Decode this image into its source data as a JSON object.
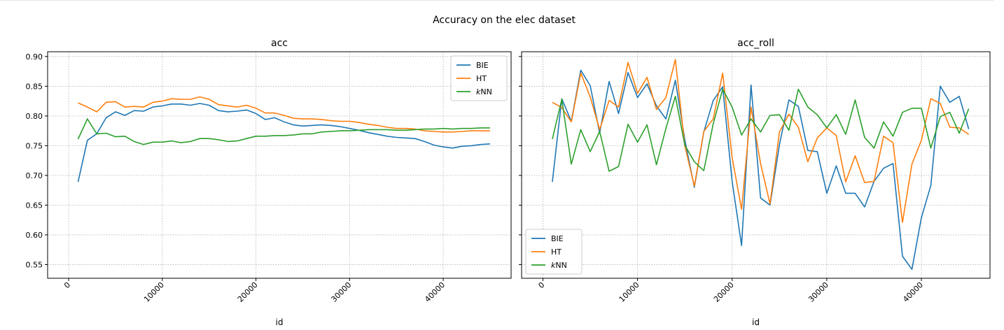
{
  "figure": {
    "suptitle": "Accuracy on the elec dataset"
  },
  "colors": {
    "BIE": "#1f77b4",
    "HT": "#ff7f0e",
    "kNN": "#2ca02c",
    "grid": "#b0b0b0"
  },
  "chart_data": [
    {
      "type": "line",
      "title": "acc",
      "xlabel": "id",
      "ylabel": "",
      "xlim": [
        -2250,
        47250
      ],
      "ylim": [
        0.527,
        0.908
      ],
      "xticks": [
        0,
        10000,
        20000,
        30000,
        40000
      ],
      "yticks": [
        "0.55",
        "0.60",
        "0.65",
        "0.70",
        "0.75",
        "0.80",
        "0.85",
        "0.90"
      ],
      "grid": true,
      "legend": "top-right",
      "x": [
        1000,
        2000,
        3000,
        4000,
        5000,
        6000,
        7000,
        8000,
        9000,
        10000,
        11000,
        12000,
        13000,
        14000,
        15000,
        16000,
        17000,
        18000,
        19000,
        20000,
        21000,
        22000,
        23000,
        24000,
        25000,
        26000,
        27000,
        28000,
        29000,
        30000,
        31000,
        32000,
        33000,
        34000,
        35000,
        36000,
        37000,
        38000,
        39000,
        40000,
        41000,
        42000,
        43000,
        44000,
        45000
      ],
      "series": [
        {
          "name": "BIE",
          "values": [
            0.689,
            0.759,
            0.77,
            0.797,
            0.807,
            0.801,
            0.809,
            0.808,
            0.815,
            0.817,
            0.82,
            0.82,
            0.818,
            0.821,
            0.818,
            0.809,
            0.807,
            0.808,
            0.81,
            0.804,
            0.794,
            0.797,
            0.79,
            0.785,
            0.783,
            0.784,
            0.785,
            0.784,
            0.782,
            0.779,
            0.776,
            0.772,
            0.769,
            0.766,
            0.764,
            0.763,
            0.762,
            0.757,
            0.751,
            0.748,
            0.746,
            0.749,
            0.75,
            0.752,
            0.753
          ]
        },
        {
          "name": "HT",
          "values": [
            0.822,
            0.815,
            0.807,
            0.823,
            0.824,
            0.815,
            0.816,
            0.815,
            0.823,
            0.825,
            0.829,
            0.828,
            0.828,
            0.832,
            0.828,
            0.819,
            0.817,
            0.815,
            0.818,
            0.813,
            0.805,
            0.805,
            0.801,
            0.796,
            0.795,
            0.795,
            0.794,
            0.792,
            0.791,
            0.791,
            0.789,
            0.786,
            0.784,
            0.781,
            0.779,
            0.779,
            0.778,
            0.775,
            0.774,
            0.773,
            0.773,
            0.774,
            0.775,
            0.775,
            0.775
          ]
        },
        {
          "name": "kNN",
          "values": [
            0.761,
            0.795,
            0.77,
            0.771,
            0.765,
            0.766,
            0.757,
            0.752,
            0.756,
            0.756,
            0.758,
            0.755,
            0.757,
            0.762,
            0.762,
            0.76,
            0.757,
            0.758,
            0.762,
            0.766,
            0.766,
            0.767,
            0.767,
            0.768,
            0.77,
            0.77,
            0.773,
            0.774,
            0.775,
            0.775,
            0.776,
            0.777,
            0.777,
            0.777,
            0.776,
            0.776,
            0.777,
            0.778,
            0.778,
            0.779,
            0.778,
            0.779,
            0.779,
            0.78,
            0.78
          ]
        }
      ]
    },
    {
      "type": "line",
      "title": "acc_roll",
      "xlabel": "id",
      "ylabel": "",
      "xlim": [
        -2250,
        47250
      ],
      "ylim": [
        0.527,
        0.908
      ],
      "xticks": [
        0,
        10000,
        20000,
        30000,
        40000
      ],
      "yticks": [],
      "grid": true,
      "legend": "bottom-left",
      "x": [
        1000,
        2000,
        3000,
        4000,
        5000,
        6000,
        7000,
        8000,
        9000,
        10000,
        11000,
        12000,
        13000,
        14000,
        15000,
        16000,
        17000,
        18000,
        19000,
        20000,
        21000,
        22000,
        23000,
        24000,
        25000,
        26000,
        27000,
        28000,
        29000,
        30000,
        31000,
        32000,
        33000,
        34000,
        35000,
        36000,
        37000,
        38000,
        39000,
        40000,
        41000,
        42000,
        43000,
        44000,
        45000
      ],
      "series": [
        {
          "name": "BIE",
          "values": [
            0.689,
            0.829,
            0.791,
            0.877,
            0.851,
            0.771,
            0.858,
            0.804,
            0.873,
            0.831,
            0.854,
            0.817,
            0.795,
            0.86,
            0.76,
            0.68,
            0.773,
            0.826,
            0.849,
            0.69,
            0.582,
            0.852,
            0.662,
            0.65,
            0.752,
            0.827,
            0.816,
            0.742,
            0.74,
            0.67,
            0.716,
            0.67,
            0.67,
            0.647,
            0.69,
            0.712,
            0.72,
            0.564,
            0.542,
            0.629,
            0.683,
            0.85,
            0.823,
            0.833,
            0.778
          ]
        },
        {
          "name": "HT",
          "values": [
            0.823,
            0.814,
            0.79,
            0.872,
            0.832,
            0.777,
            0.826,
            0.815,
            0.89,
            0.838,
            0.865,
            0.811,
            0.831,
            0.895,
            0.75,
            0.682,
            0.774,
            0.795,
            0.872,
            0.73,
            0.643,
            0.815,
            0.72,
            0.652,
            0.773,
            0.803,
            0.781,
            0.723,
            0.763,
            0.78,
            0.767,
            0.689,
            0.733,
            0.688,
            0.69,
            0.766,
            0.755,
            0.621,
            0.719,
            0.759,
            0.829,
            0.821,
            0.781,
            0.78,
            0.769
          ]
        },
        {
          "name": "kNN",
          "values": [
            0.761,
            0.828,
            0.719,
            0.777,
            0.74,
            0.774,
            0.707,
            0.715,
            0.786,
            0.756,
            0.785,
            0.718,
            0.779,
            0.833,
            0.751,
            0.723,
            0.708,
            0.787,
            0.845,
            0.815,
            0.768,
            0.795,
            0.773,
            0.801,
            0.802,
            0.776,
            0.845,
            0.815,
            0.802,
            0.78,
            0.802,
            0.769,
            0.827,
            0.764,
            0.746,
            0.79,
            0.766,
            0.806,
            0.813,
            0.813,
            0.746,
            0.799,
            0.806,
            0.771,
            0.812
          ]
        }
      ]
    }
  ]
}
